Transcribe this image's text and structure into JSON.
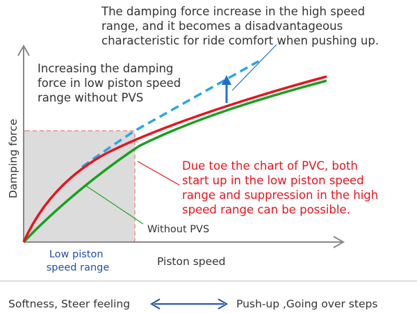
{
  "annotations": {
    "high_speed_note": [
      "The damping force increase in the high speed",
      "range, and it becomes a disadvantageous",
      "characteristic for ride comfort when pushing up."
    ],
    "low_speed_note": [
      "Increasing the damping",
      "force in low piston speed",
      "range without PVS"
    ],
    "pvs_note": [
      "Due toe the chart of PVC, both",
      "start up in the low piston speed",
      "range and suppression in the high",
      "speed range can be possible."
    ],
    "without_pvs_label": "Without PVS",
    "low_range_label": [
      "Low piston",
      "speed range"
    ]
  },
  "axes": {
    "x_label": "Piston speed",
    "y_label": "Damping force"
  },
  "bottom_bar": {
    "left_text": "Softness, Steer feeling",
    "right_text": "Push-up ,Going over steps"
  },
  "colors": {
    "pvs_curve": "#e8141e",
    "without_pvs_curve": "#19a020",
    "dashed_curve": "#26a8e8",
    "blue_arrow": "#1e6fd0",
    "double_arrow": "#1d4fb8",
    "note_red": "#e8141e",
    "low_range_text": "#1f4fa8",
    "shade_fill": "#dcdcdc",
    "shade_border": "#f08a8a"
  }
}
